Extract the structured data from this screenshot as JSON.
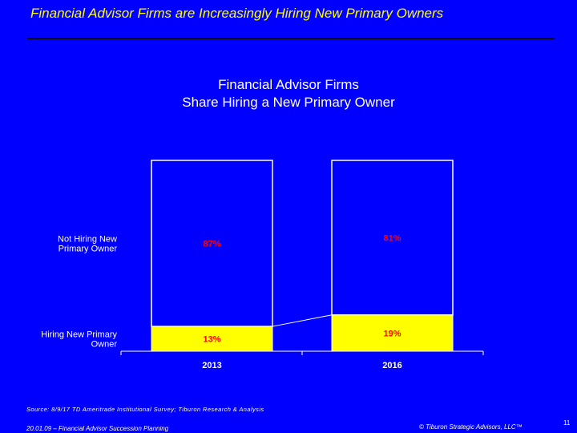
{
  "slide": {
    "title": "Financial Advisor Firms are Increasingly Hiring New Primary Owners",
    "source": "Source: 8/9/17 TD Ameritrade Institutional Survey; Tiburon Research & Analysis",
    "footer_left": "20.01.09 – Financial Advisor Succession Planning",
    "footer_right": "© Tiburon Strategic Advisors, LLC™",
    "page_number": "11"
  },
  "colors": {
    "background": "#0000FF",
    "title_text": "#FFFF00",
    "not_hiring": "#0000FF",
    "hiring": "#FFFF00",
    "data_label": "#FF0000"
  },
  "chart_data": {
    "type": "bar",
    "stacked": true,
    "percent": true,
    "title": "Financial Advisor Firms",
    "subtitle": "Share Hiring a New Primary Owner",
    "categories": [
      "2013",
      "2016"
    ],
    "series": [
      {
        "name": "Hiring New Primary Owner",
        "values": [
          13,
          19
        ],
        "labels": [
          "13%",
          "19%"
        ]
      },
      {
        "name": "Not Hiring New Primary Owner",
        "values": [
          87,
          81
        ],
        "labels": [
          "87%",
          "81%"
        ]
      }
    ],
    "ylim": [
      0,
      100
    ],
    "legend": "left",
    "grid": false
  }
}
